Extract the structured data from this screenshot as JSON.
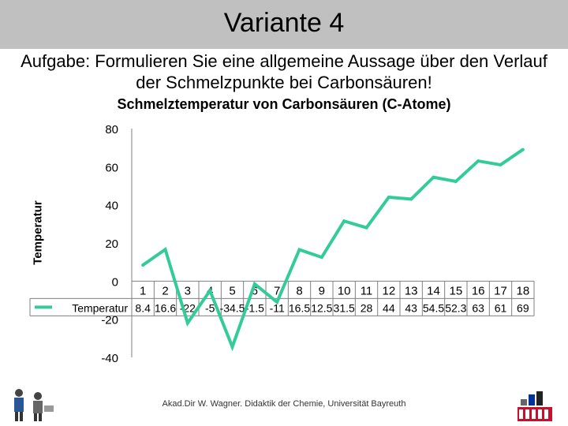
{
  "slide": {
    "title": "Variante 4",
    "task_label": "Aufgabe",
    "task_text": ": Formulieren Sie eine allgemeine Aussage über den Verlauf der Schmelzpunkte bei Carbonsäuren!",
    "footer": "Akad.Dir W. Wagner. Didaktik der Chemie, Universität Bayreuth"
  },
  "chart_data": {
    "type": "line",
    "title": "Schmelztemperatur von Carbonsäuren (C-Atome)",
    "ylabel": "Temperatur",
    "xlabel": "",
    "ylim": [
      -40,
      80
    ],
    "y_ticks": [
      "80",
      "60",
      "40",
      "20",
      "0",
      "-20",
      "-40"
    ],
    "categories": [
      "1",
      "2",
      "3",
      "4",
      "5",
      "6",
      "7",
      "8",
      "9",
      "10",
      "11",
      "12",
      "13",
      "14",
      "15",
      "16",
      "17",
      "18"
    ],
    "series": [
      {
        "name": "Temperatur",
        "values": [
          8.4,
          16.6,
          -22,
          -5,
          -34.5,
          -1.5,
          -11,
          16.5,
          12.5,
          31.5,
          28,
          44,
          43,
          54.5,
          52.3,
          63,
          61,
          69
        ],
        "table_labels": [
          "8.4",
          "16.6",
          "-22",
          "-5",
          "-34.5",
          "-1.5",
          "-11",
          "16.5",
          "12.5",
          "31.5",
          "28",
          "44",
          "43",
          "54.5",
          "52.3",
          "63",
          "61",
          "69"
        ],
        "color": "#33cc99"
      }
    ],
    "grid": false,
    "legend": "data-table-left"
  }
}
